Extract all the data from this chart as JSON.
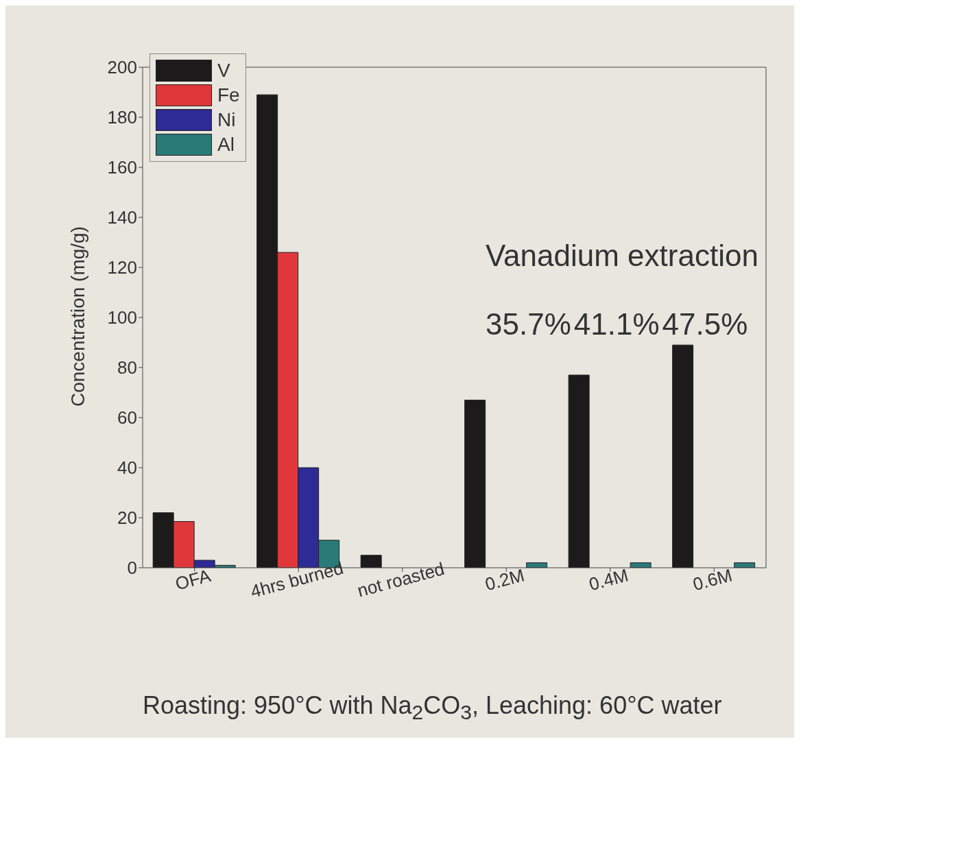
{
  "chart_data": {
    "type": "bar",
    "ylabel": "Concentration (mg/g)",
    "categories": [
      "OFA",
      "4hrs burned",
      "not roasted",
      "0.2M",
      "0.4M",
      "0.6M"
    ],
    "series": [
      {
        "name": "V",
        "color": "#1c1a1a",
        "values": [
          22,
          189,
          5,
          67,
          77,
          89
        ]
      },
      {
        "name": "Fe",
        "color": "#e0383a",
        "values": [
          18.5,
          126,
          0,
          0,
          0,
          0
        ]
      },
      {
        "name": "Ni",
        "color": "#2e2a96",
        "values": [
          3,
          40,
          0,
          0,
          0,
          0
        ]
      },
      {
        "name": "Al",
        "color": "#2a7a78",
        "values": [
          1,
          11,
          0,
          2,
          2,
          2
        ]
      }
    ],
    "ylim": [
      0,
      200
    ],
    "yticks": [
      0,
      20,
      40,
      60,
      80,
      100,
      120,
      140,
      160,
      180,
      200
    ],
    "legend": "top left",
    "annotations": [
      "Vanadium extraction",
      "35.7%",
      "41.1%",
      "47.5%",
      "Roasting: 950°C with Na$_{2}$CO$_{3}$, Leaching: 60°C water"
    ]
  }
}
